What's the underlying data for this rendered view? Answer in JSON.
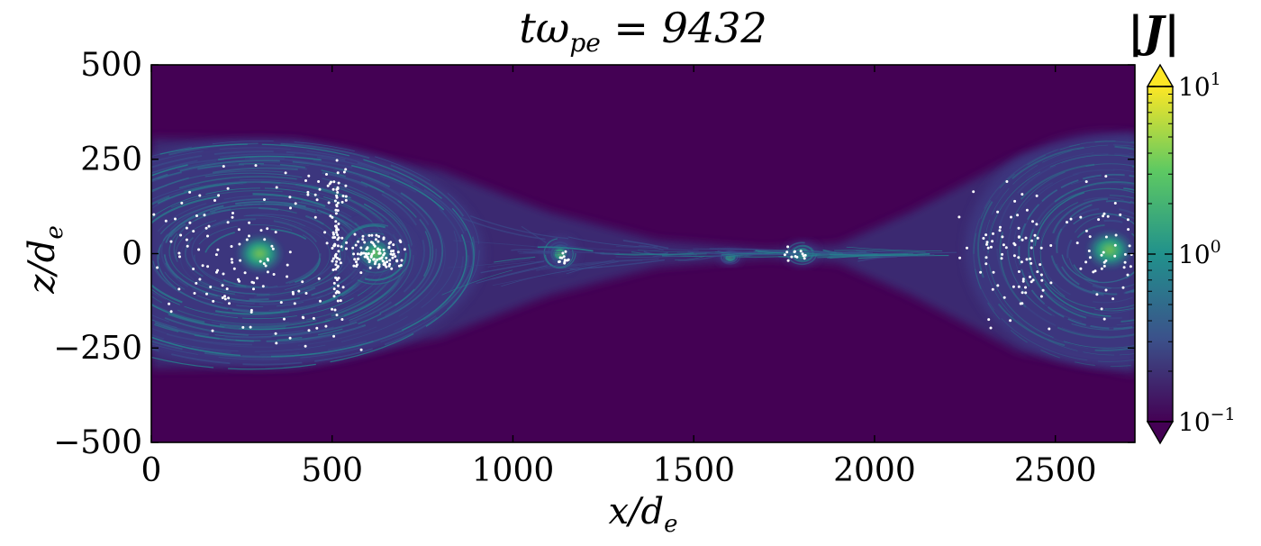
{
  "title": {
    "prefix": "tω",
    "sub": "pe",
    "suffix": " = 9432"
  },
  "colorbar": {
    "label": "|J|",
    "scale": "log",
    "range": [
      0.1,
      10
    ],
    "extend": "both",
    "ticks": [
      {
        "base": "10",
        "exp": "1"
      },
      {
        "base": "10",
        "exp": "0"
      },
      {
        "base": "10",
        "exp": "−1"
      }
    ],
    "colormap": [
      "#440154",
      "#3b528b",
      "#21918c",
      "#5ec962",
      "#fde725"
    ]
  },
  "colors": {
    "background_field": "#440154",
    "sheet_low": "#3a4b8a",
    "sheet_mid": "#25838e",
    "sheet_high": "#3fbc73",
    "particles": "#ffffff",
    "under": "#440154",
    "over": "#fde725"
  },
  "chart_data": {
    "type": "heatmap",
    "title": "tω_pe = 9432",
    "quantity": "|J|",
    "xlabel": "x/d_e",
    "ylabel": "z/d_e",
    "xlim": [
      0,
      2720
    ],
    "ylim": [
      -500,
      500
    ],
    "xticks": [
      0,
      500,
      1000,
      1500,
      2000,
      2500
    ],
    "yticks": [
      -500,
      -250,
      0,
      250,
      500
    ],
    "color_scale": "log",
    "color_range": [
      0.1,
      10
    ],
    "colorbar_ticks": [
      "10^1",
      "10^0",
      "10^-1"
    ],
    "current_sheet": {
      "halfwidth_outer": [
        {
          "x": 0,
          "z": 305
        },
        {
          "x": 400,
          "z": 300
        },
        {
          "x": 800,
          "z": 220
        },
        {
          "x": 1100,
          "z": 110
        },
        {
          "x": 1400,
          "z": 35
        },
        {
          "x": 1700,
          "z": 12
        },
        {
          "x": 1900,
          "z": 25
        },
        {
          "x": 2100,
          "z": 110
        },
        {
          "x": 2400,
          "z": 260
        },
        {
          "x": 2720,
          "z": 320
        }
      ]
    },
    "plasmoids": [
      {
        "x_center": 300,
        "z_center": 0,
        "x_halfwidth": 620,
        "z_halfwidth": 300,
        "peak_J": 2
      },
      {
        "x_center": 620,
        "z_center": 0,
        "x_halfwidth": 110,
        "z_halfwidth": 90,
        "peak_J": 3
      },
      {
        "x_center": 1130,
        "z_center": 0,
        "x_halfwidth": 50,
        "z_halfwidth": 45,
        "peak_J": 3
      },
      {
        "x_center": 1600,
        "z_center": -10,
        "x_halfwidth": 30,
        "z_halfwidth": 20,
        "peak_J": 3
      },
      {
        "x_center": 1800,
        "z_center": 0,
        "x_halfwidth": 45,
        "z_halfwidth": 32,
        "peak_J": 4
      },
      {
        "x_center": 2650,
        "z_center": 10,
        "x_halfwidth": 400,
        "z_halfwidth": 310,
        "peak_J": 2
      }
    ],
    "particles": {
      "marker": "white dot",
      "clusters": [
        {
          "x_center": 200,
          "z_center": 0,
          "x_spread": 200,
          "z_spread": 160,
          "count": 90
        },
        {
          "x_center": 510,
          "z_center": 0,
          "x_spread": 12,
          "z_spread": 170,
          "count": 70
        },
        {
          "x_center": 620,
          "z_center": 0,
          "x_spread": 60,
          "z_spread": 40,
          "count": 110
        },
        {
          "x_center": 470,
          "z_center": 180,
          "x_spread": 90,
          "z_spread": 60,
          "count": 30
        },
        {
          "x_center": 400,
          "z_center": -120,
          "x_spread": 150,
          "z_spread": 100,
          "count": 35
        },
        {
          "x_center": 1140,
          "z_center": -15,
          "x_spread": 20,
          "z_spread": 12,
          "count": 12
        },
        {
          "x_center": 1790,
          "z_center": 0,
          "x_spread": 30,
          "z_spread": 15,
          "count": 14
        },
        {
          "x_center": 2380,
          "z_center": 0,
          "x_spread": 120,
          "z_spread": 150,
          "count": 80
        },
        {
          "x_center": 2650,
          "z_center": 0,
          "x_spread": 70,
          "z_spread": 150,
          "count": 45
        }
      ]
    }
  }
}
